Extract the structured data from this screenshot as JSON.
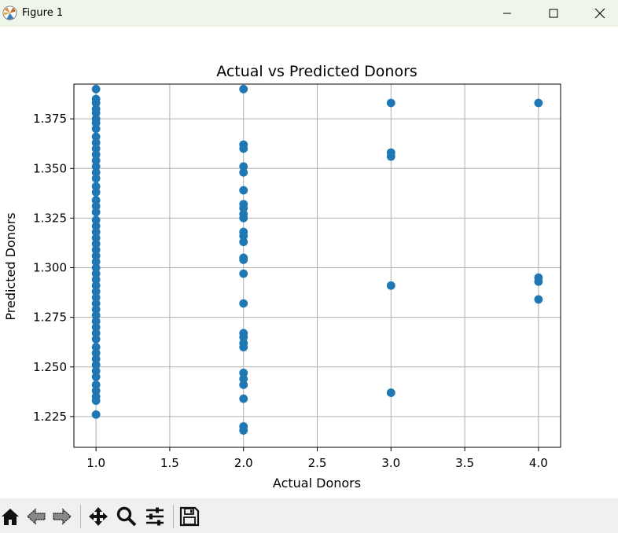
{
  "window": {
    "title": "Figure 1",
    "minimize_icon": "minimize-icon",
    "maximize_icon": "maximize-icon",
    "close_icon": "close-icon"
  },
  "toolbar": {
    "items": [
      "home-icon",
      "back-arrow-icon",
      "forward-arrow-icon",
      "pan-move-icon",
      "zoom-magnifier-icon",
      "configure-subplots-icon",
      "save-floppy-icon"
    ]
  },
  "chart_data": {
    "type": "scatter",
    "title": "Actual vs Predicted Donors",
    "xlabel": "Actual Donors",
    "ylabel": "Predicted Donors",
    "xlim": [
      0.85,
      4.15
    ],
    "ylim": [
      1.2095,
      1.3925
    ],
    "xticks": [
      "1.0",
      "1.5",
      "2.0",
      "2.5",
      "3.0",
      "3.5",
      "4.0"
    ],
    "yticks": [
      "1.225",
      "1.250",
      "1.275",
      "1.300",
      "1.325",
      "1.350",
      "1.375"
    ],
    "grid": true,
    "marker_color": "#1f77b4",
    "points": [
      [
        1,
        1.39
      ],
      [
        1,
        1.385
      ],
      [
        1,
        1.383
      ],
      [
        1,
        1.38
      ],
      [
        1,
        1.378
      ],
      [
        1,
        1.375
      ],
      [
        1,
        1.373
      ],
      [
        1,
        1.37
      ],
      [
        1,
        1.366
      ],
      [
        1,
        1.363
      ],
      [
        1,
        1.36
      ],
      [
        1,
        1.357
      ],
      [
        1,
        1.354
      ],
      [
        1,
        1.351
      ],
      [
        1,
        1.348
      ],
      [
        1,
        1.345
      ],
      [
        1,
        1.341
      ],
      [
        1,
        1.338
      ],
      [
        1,
        1.334
      ],
      [
        1,
        1.331
      ],
      [
        1,
        1.328
      ],
      [
        1,
        1.324
      ],
      [
        1,
        1.321
      ],
      [
        1,
        1.318
      ],
      [
        1,
        1.315
      ],
      [
        1,
        1.312
      ],
      [
        1,
        1.309
      ],
      [
        1,
        1.306
      ],
      [
        1,
        1.303
      ],
      [
        1,
        1.3
      ],
      [
        1,
        1.297
      ],
      [
        1,
        1.294
      ],
      [
        1,
        1.291
      ],
      [
        1,
        1.288
      ],
      [
        1,
        1.285
      ],
      [
        1,
        1.282
      ],
      [
        1,
        1.279
      ],
      [
        1,
        1.276
      ],
      [
        1,
        1.273
      ],
      [
        1,
        1.27
      ],
      [
        1,
        1.267
      ],
      [
        1,
        1.264
      ],
      [
        1,
        1.26
      ],
      [
        1,
        1.257
      ],
      [
        1,
        1.254
      ],
      [
        1,
        1.251
      ],
      [
        1,
        1.248
      ],
      [
        1,
        1.245
      ],
      [
        1,
        1.241
      ],
      [
        1,
        1.238
      ],
      [
        1,
        1.235
      ],
      [
        1,
        1.233
      ],
      [
        1,
        1.226
      ],
      [
        2,
        1.39
      ],
      [
        2,
        1.362
      ],
      [
        2,
        1.36
      ],
      [
        2,
        1.351
      ],
      [
        2,
        1.348
      ],
      [
        2,
        1.339
      ],
      [
        2,
        1.332
      ],
      [
        2,
        1.33
      ],
      [
        2,
        1.327
      ],
      [
        2,
        1.325
      ],
      [
        2,
        1.318
      ],
      [
        2,
        1.316
      ],
      [
        2,
        1.313
      ],
      [
        2,
        1.305
      ],
      [
        2,
        1.304
      ],
      [
        2,
        1.297
      ],
      [
        2,
        1.282
      ],
      [
        2,
        1.267
      ],
      [
        2,
        1.265
      ],
      [
        2,
        1.262
      ],
      [
        2,
        1.26
      ],
      [
        2,
        1.247
      ],
      [
        2,
        1.244
      ],
      [
        2,
        1.241
      ],
      [
        2,
        1.234
      ],
      [
        2,
        1.22
      ],
      [
        2,
        1.218
      ],
      [
        3,
        1.383
      ],
      [
        3,
        1.358
      ],
      [
        3,
        1.356
      ],
      [
        3,
        1.291
      ],
      [
        3,
        1.237
      ],
      [
        4,
        1.383
      ],
      [
        4,
        1.295
      ],
      [
        4,
        1.293
      ],
      [
        4,
        1.284
      ]
    ]
  }
}
